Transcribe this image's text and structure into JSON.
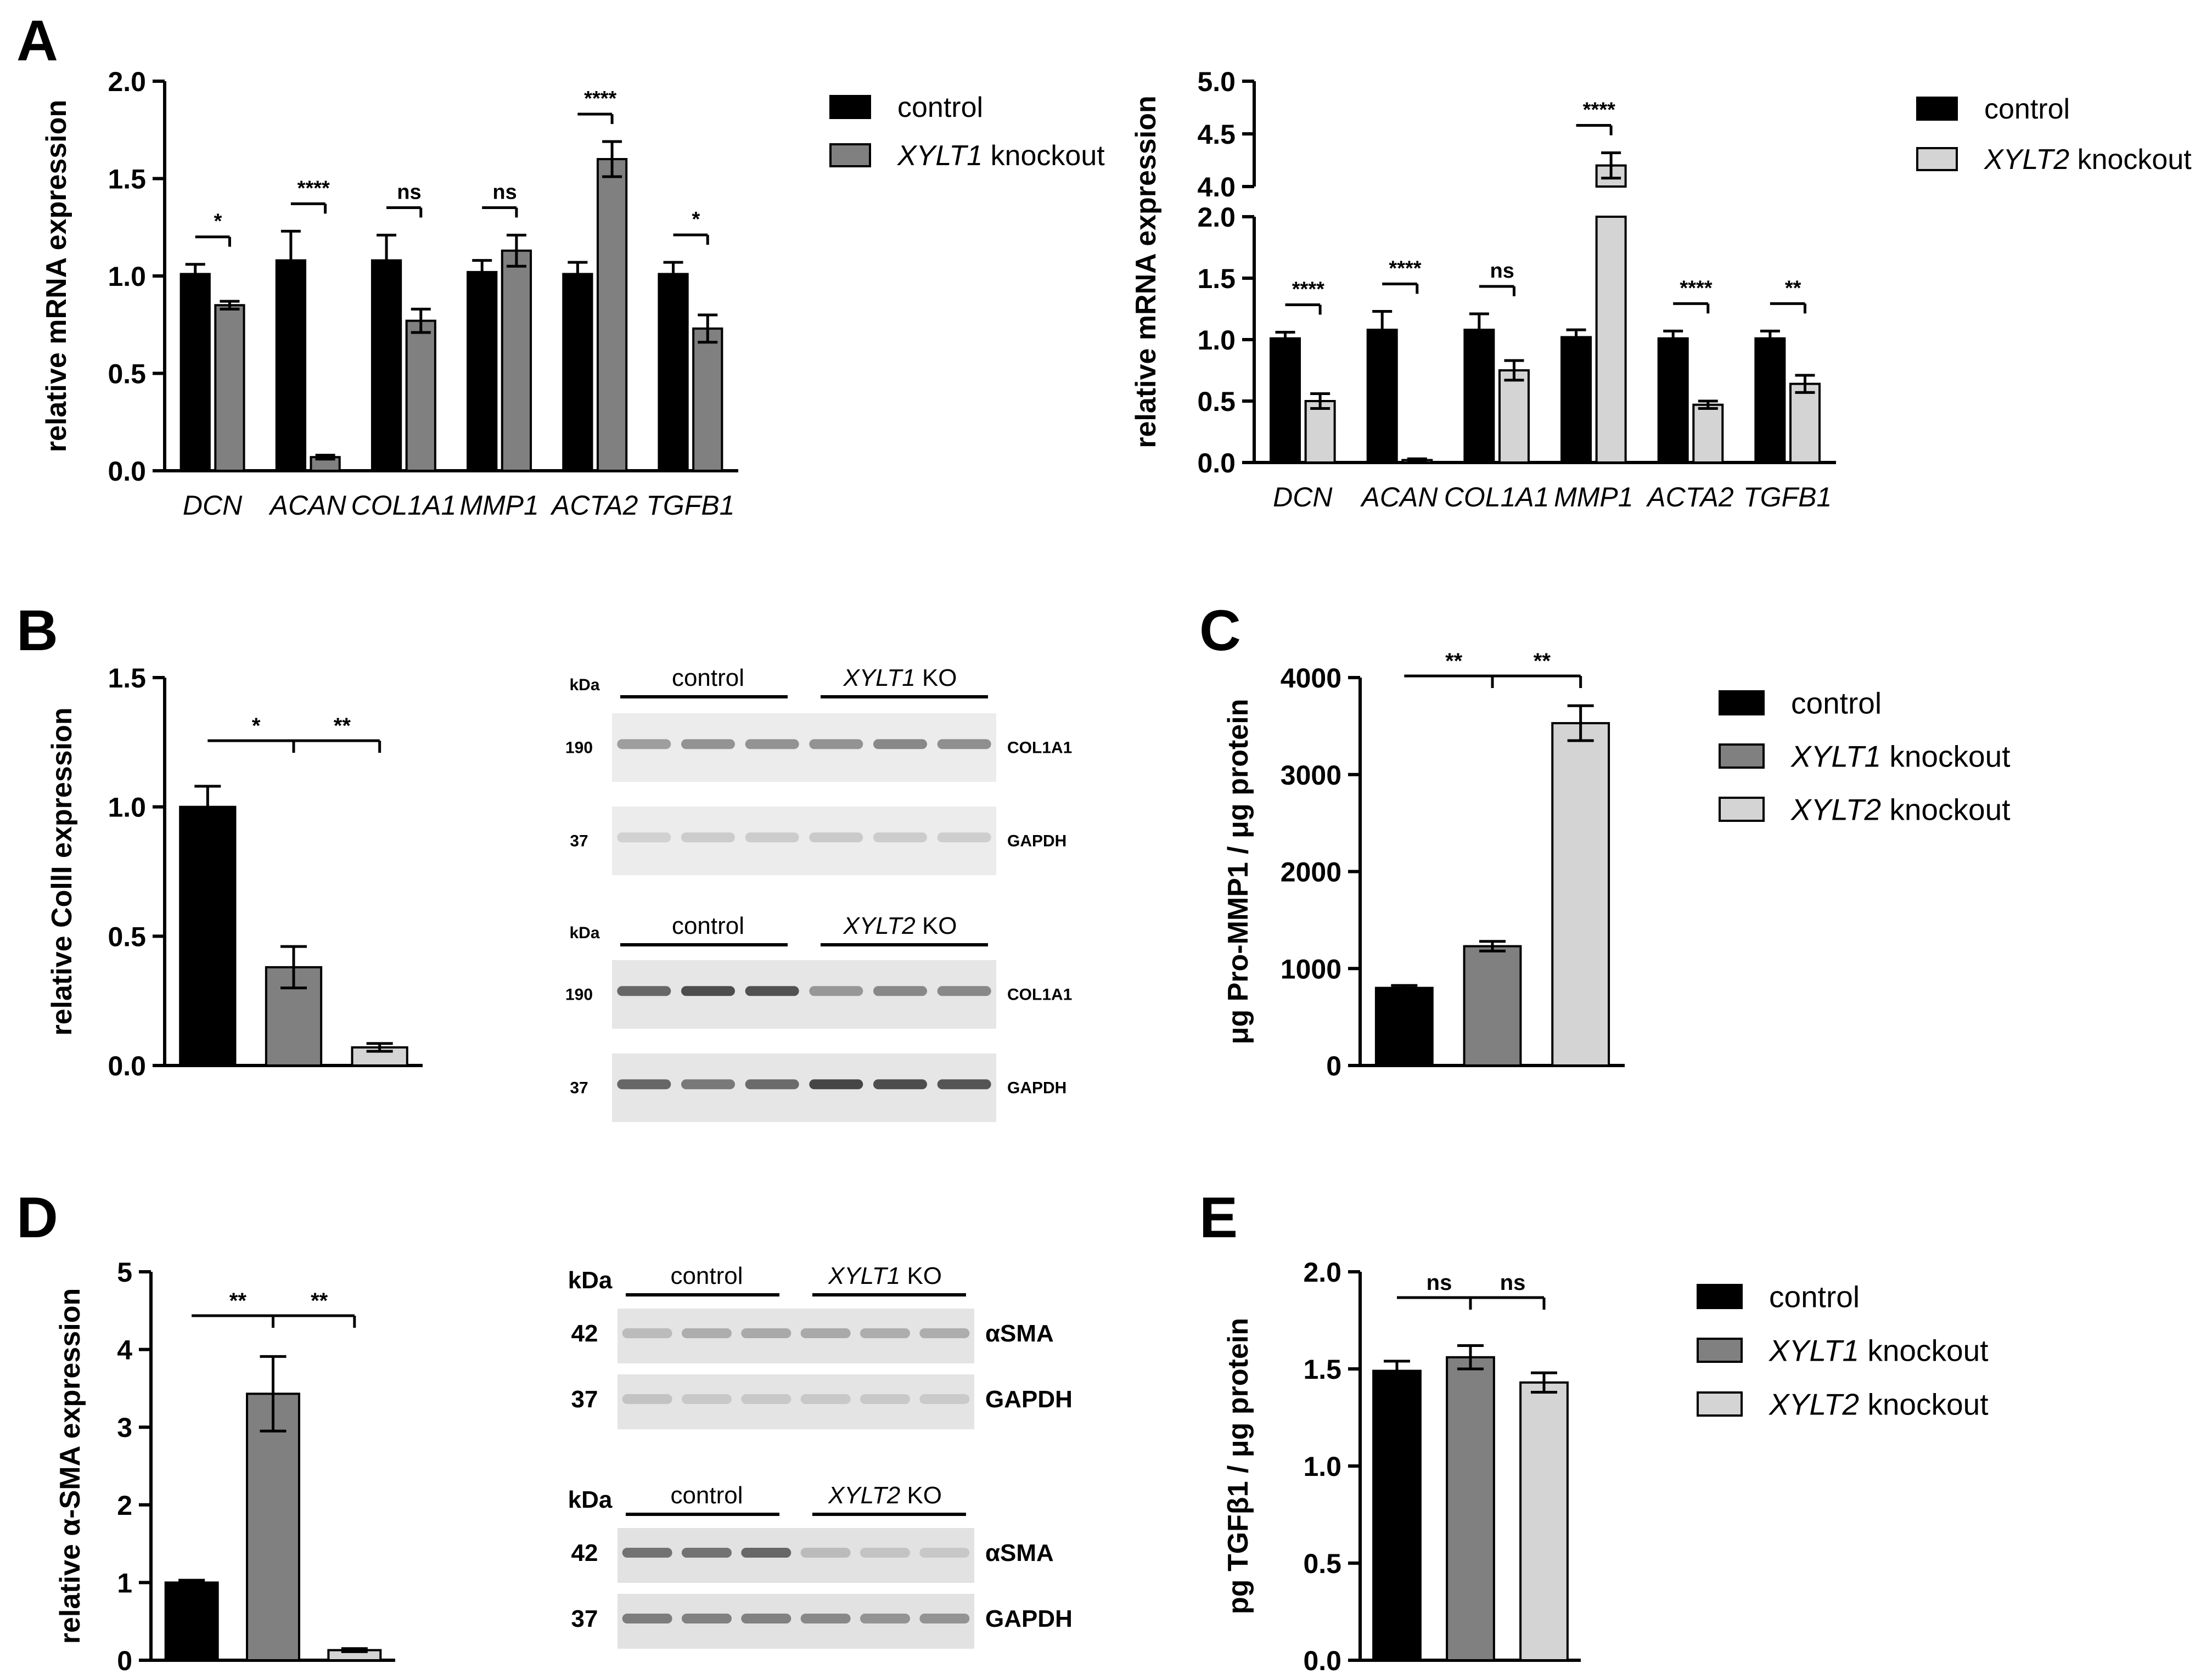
{
  "panel_letters": [
    "A",
    "B",
    "C",
    "D",
    "E"
  ],
  "colors": {
    "control": "#000000",
    "xylt1": "#808080",
    "xylt2": "#d4d4d4",
    "axis": "#000000"
  },
  "chart_data": [
    {
      "id": "A1",
      "type": "bar",
      "panel": "A",
      "ylabel": "relative mRNA expression",
      "categories": [
        "DCN",
        "ACAN",
        "COL1A1",
        "MMP1",
        "ACTA2",
        "TGFB1"
      ],
      "ylim": [
        0,
        2.0
      ],
      "yticks": [
        0.0,
        0.5,
        1.0,
        1.5,
        2.0
      ],
      "tick_labels": [
        "0.0",
        "0.5",
        "1.0",
        "1.5",
        "2.0"
      ],
      "series": [
        {
          "name": "control",
          "values": [
            1.01,
            1.08,
            1.08,
            1.02,
            1.01,
            1.01
          ],
          "errors": [
            0.05,
            0.15,
            0.13,
            0.06,
            0.06,
            0.06
          ],
          "color": "#000000"
        },
        {
          "name": "XYLT1 knockout",
          "values": [
            0.85,
            0.07,
            0.77,
            1.13,
            1.6,
            0.73
          ],
          "errors": [
            0.02,
            0.01,
            0.06,
            0.08,
            0.09,
            0.07
          ],
          "color": "#808080"
        }
      ],
      "significance": [
        "*",
        "****",
        "ns",
        "ns",
        "****",
        "*"
      ],
      "legend": [
        {
          "gene": "",
          "label": "control"
        },
        {
          "gene": "XYLT1",
          "label": " knockout"
        }
      ]
    },
    {
      "id": "A2",
      "type": "bar",
      "panel": "A",
      "ylabel": "relative mRNA expression",
      "categories": [
        "DCN",
        "ACAN",
        "COL1A1",
        "MMP1",
        "ACTA2",
        "TGFB1"
      ],
      "ylim": [
        0,
        5.0
      ],
      "axis_break": [
        2.0,
        4.0
      ],
      "yticks": [
        0.0,
        0.5,
        1.0,
        1.5,
        2.0,
        4.0,
        4.5,
        5.0
      ],
      "tick_labels": [
        "0.0",
        "0.5",
        "1.0",
        "1.5",
        "2.0",
        "4.0",
        "4.5",
        "5.0"
      ],
      "series": [
        {
          "name": "control",
          "values": [
            1.01,
            1.08,
            1.08,
            1.02,
            1.01,
            1.01
          ],
          "errors": [
            0.05,
            0.15,
            0.13,
            0.06,
            0.06,
            0.06
          ],
          "color": "#000000"
        },
        {
          "name": "XYLT2 knockout",
          "values": [
            0.5,
            0.02,
            0.75,
            4.2,
            0.47,
            0.64
          ],
          "errors": [
            0.06,
            0.01,
            0.08,
            0.12,
            0.03,
            0.07
          ],
          "color": "#d4d4d4"
        }
      ],
      "significance": [
        "****",
        "****",
        "ns",
        "****",
        "****",
        "**"
      ],
      "legend": [
        {
          "gene": "",
          "label": "control"
        },
        {
          "gene": "XYLT2",
          "label": " knockout"
        }
      ]
    },
    {
      "id": "B",
      "type": "bar",
      "panel": "B",
      "ylabel": "relative CollI expression",
      "categories": [
        "control",
        "XYLT1 knockout",
        "XYLT2 knockout"
      ],
      "values": [
        1.0,
        0.38,
        0.07
      ],
      "errors": [
        0.08,
        0.08,
        0.015
      ],
      "ylim": [
        0,
        1.5
      ],
      "yticks": [
        0.0,
        0.5,
        1.0,
        1.5
      ],
      "tick_labels": [
        "0.0",
        "0.5",
        "1.0",
        "1.5"
      ],
      "significance": [
        "*",
        "**"
      ]
    },
    {
      "id": "C",
      "type": "bar",
      "panel": "C",
      "ylabel": "μg Pro-MMP1 / μg protein",
      "categories": [
        "control",
        "XYLT1 knockout",
        "XYLT2 knockout"
      ],
      "values": [
        800,
        1230,
        3530
      ],
      "errors": [
        25,
        50,
        180
      ],
      "ylim": [
        0,
        4000
      ],
      "yticks": [
        0,
        1000,
        2000,
        3000,
        4000
      ],
      "tick_labels": [
        "0",
        "1000",
        "2000",
        "3000",
        "4000"
      ],
      "significance": [
        "**",
        "**"
      ],
      "legend": [
        {
          "gene": "",
          "label": "control"
        },
        {
          "gene": "XYLT1",
          "label": " knockout"
        },
        {
          "gene": "XYLT2",
          "label": " knockout"
        }
      ]
    },
    {
      "id": "D",
      "type": "bar",
      "panel": "D",
      "ylabel": "relative α-SMA expression",
      "categories": [
        "control",
        "XYLT1 knockout",
        "XYLT2 knockout"
      ],
      "values": [
        1.0,
        3.43,
        0.13
      ],
      "errors": [
        0.03,
        0.48,
        0.02
      ],
      "ylim": [
        0,
        5
      ],
      "yticks": [
        0,
        1,
        2,
        3,
        4,
        5
      ],
      "tick_labels": [
        "0",
        "1",
        "2",
        "3",
        "4",
        "5"
      ],
      "significance": [
        "**",
        "**"
      ]
    },
    {
      "id": "E",
      "type": "bar",
      "panel": "E",
      "ylabel": "pg TGFβ1 / μg protein",
      "categories": [
        "control",
        "XYLT1 knockout",
        "XYLT2 knockout"
      ],
      "values": [
        1.49,
        1.56,
        1.43
      ],
      "errors": [
        0.05,
        0.06,
        0.05
      ],
      "ylim": [
        0,
        2.0
      ],
      "yticks": [
        0.0,
        0.5,
        1.0,
        1.5,
        2.0
      ],
      "tick_labels": [
        "0.0",
        "0.5",
        "1.0",
        "1.5",
        "2.0"
      ],
      "significance": [
        "ns",
        "ns"
      ],
      "legend": [
        {
          "gene": "",
          "label": "control"
        },
        {
          "gene": "XYLT1",
          "label": " knockout"
        },
        {
          "gene": "XYLT2",
          "label": " knockout"
        }
      ]
    }
  ],
  "blots": [
    {
      "id": "B-blot1",
      "kda_label": "kDa",
      "group1": "control",
      "group2_gene": "XYLT1",
      "group2_suffix": " KO",
      "bands": [
        {
          "marker": "190",
          "label": "COL1A1",
          "intensity": [
            0.35,
            0.4,
            0.4,
            0.4,
            0.45,
            0.42
          ]
        },
        {
          "marker": "37",
          "label": "GAPDH",
          "intensity": [
            0.12,
            0.14,
            0.14,
            0.15,
            0.14,
            0.13
          ]
        }
      ]
    },
    {
      "id": "B-blot2",
      "kda_label": "kDa",
      "group1": "control",
      "group2_gene": "XYLT2",
      "group2_suffix": " KO",
      "bands": [
        {
          "marker": "190",
          "label": "COL1A1",
          "intensity": [
            0.6,
            0.72,
            0.7,
            0.38,
            0.45,
            0.45
          ]
        },
        {
          "marker": "37",
          "label": "GAPDH",
          "intensity": [
            0.6,
            0.52,
            0.58,
            0.75,
            0.72,
            0.68
          ]
        }
      ]
    },
    {
      "id": "D-blot1",
      "kda_label": "kDa",
      "group1": "control",
      "group2_gene": "XYLT1",
      "group2_suffix": " KO",
      "bands": [
        {
          "marker": "42",
          "label": "αSMA",
          "intensity": [
            0.22,
            0.28,
            0.3,
            0.3,
            0.28,
            0.28
          ]
        },
        {
          "marker": "37",
          "label": "GAPDH",
          "intensity": [
            0.18,
            0.16,
            0.16,
            0.16,
            0.16,
            0.15
          ]
        }
      ]
    },
    {
      "id": "D-blot2",
      "kda_label": "kDa",
      "group1": "control",
      "group2_gene": "XYLT2",
      "group2_suffix": " KO",
      "bands": [
        {
          "marker": "42",
          "label": "αSMA",
          "intensity": [
            0.55,
            0.55,
            0.6,
            0.22,
            0.18,
            0.16
          ]
        },
        {
          "marker": "37",
          "label": "GAPDH",
          "intensity": [
            0.5,
            0.48,
            0.48,
            0.45,
            0.4,
            0.4
          ]
        }
      ]
    }
  ]
}
